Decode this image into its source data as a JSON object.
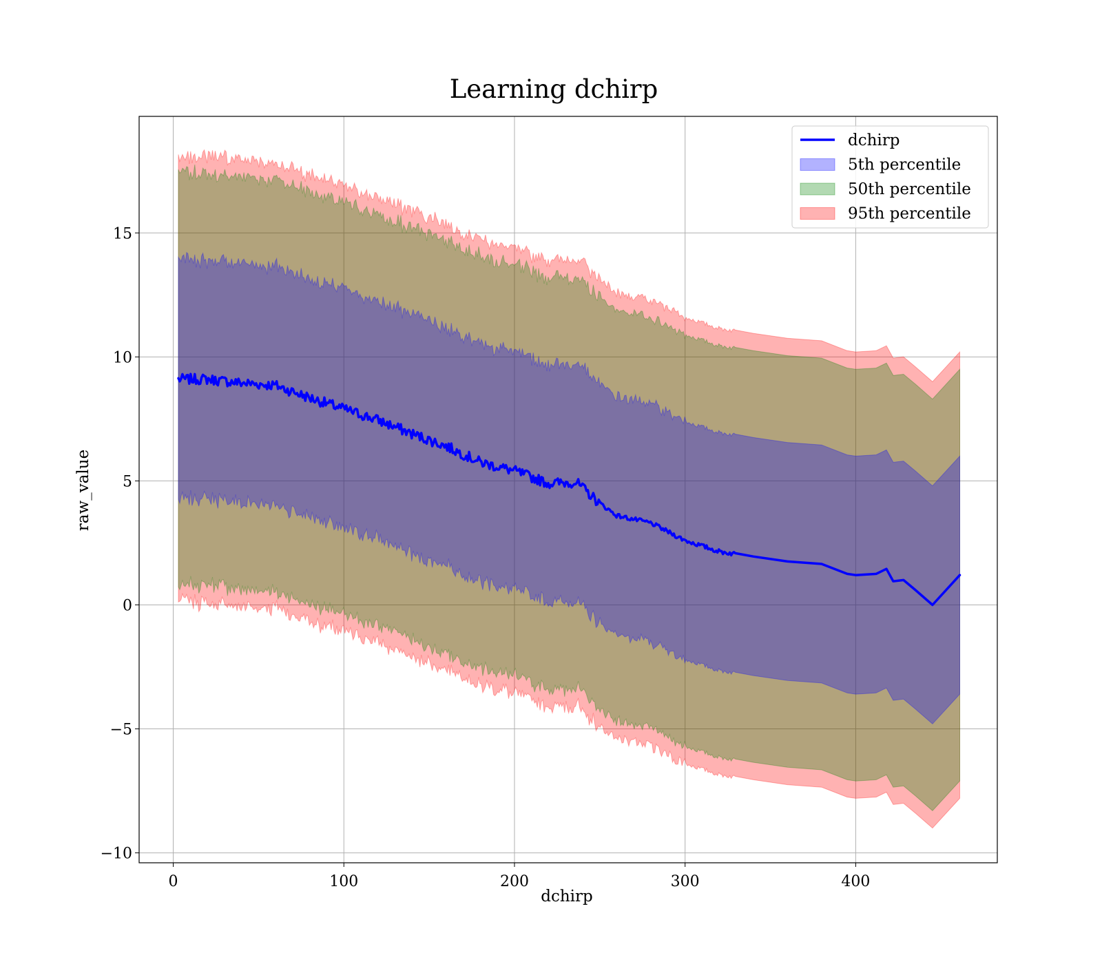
{
  "chart_data": {
    "type": "line",
    "title": "Learning dchirp",
    "xlabel": "dchirp",
    "ylabel": "raw_value",
    "xlim": [
      -20,
      483
    ],
    "ylim": [
      -10.4,
      19.7
    ],
    "grid": true,
    "legend_position": "top-right",
    "x_ticks": [
      0,
      100,
      200,
      300,
      400
    ],
    "x_tick_labels": [
      "0",
      "100",
      "200",
      "300",
      "400"
    ],
    "y_ticks": [
      -10,
      -5,
      0,
      5,
      10,
      15
    ],
    "y_tick_labels": [
      "−10",
      "−5",
      "0",
      "5",
      "10",
      "15"
    ],
    "series": [
      {
        "name": "dchirp",
        "kind": "line",
        "color": "#0000ff"
      },
      {
        "name": "5th percentile",
        "kind": "band",
        "color": "#0000ff",
        "opacity": 0.3
      },
      {
        "name": "50th percentile",
        "kind": "band",
        "color": "#008000",
        "opacity": 0.3
      },
      {
        "name": "95th percentile",
        "kind": "band",
        "color": "#ff0000",
        "opacity": 0.3
      }
    ],
    "mean_line": {
      "x": [
        3,
        20,
        40,
        60,
        80,
        100,
        120,
        140,
        160,
        180,
        200,
        220,
        236,
        250,
        260,
        280,
        300,
        320,
        340,
        360,
        380,
        395,
        400,
        412,
        418,
        422,
        428,
        435,
        445,
        461
      ],
      "y": [
        9.1,
        9.1,
        8.95,
        8.85,
        8.35,
        7.9,
        7.45,
        6.9,
        6.4,
        5.75,
        5.4,
        4.9,
        4.95,
        4.1,
        3.6,
        3.3,
        2.6,
        2.15,
        1.95,
        1.75,
        1.65,
        1.25,
        1.2,
        1.25,
        1.45,
        0.95,
        1.0,
        0.6,
        0.0,
        1.2
      ]
    },
    "band_half_widths": {
      "5th percentile": 4.8,
      "50th percentile": 8.3,
      "95th percentile": 9.0
    }
  }
}
